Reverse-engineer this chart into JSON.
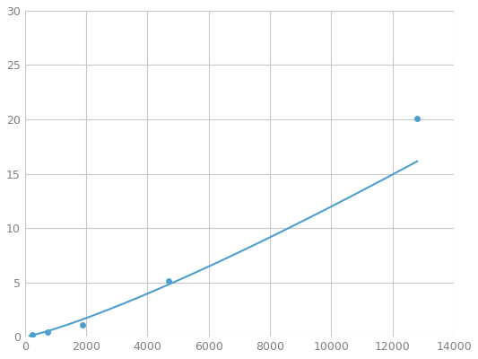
{
  "x": [
    250,
    750,
    1875,
    4688,
    12800
  ],
  "y": [
    0.2,
    0.4,
    1.1,
    5.1,
    20.1
  ],
  "line_color": "#4d9fcd",
  "marker_color": "#4d9fcd",
  "marker_size": 5,
  "xlim": [
    0,
    14000
  ],
  "ylim": [
    0,
    30
  ],
  "xticks": [
    0,
    2000,
    4000,
    6000,
    8000,
    10000,
    12000,
    14000
  ],
  "yticks": [
    0,
    5,
    10,
    15,
    20,
    25,
    30
  ],
  "grid_color": "#c8c8c8",
  "background_color": "#ffffff",
  "line_width": 1.5,
  "tick_label_color": "#808080",
  "tick_label_size": 9
}
